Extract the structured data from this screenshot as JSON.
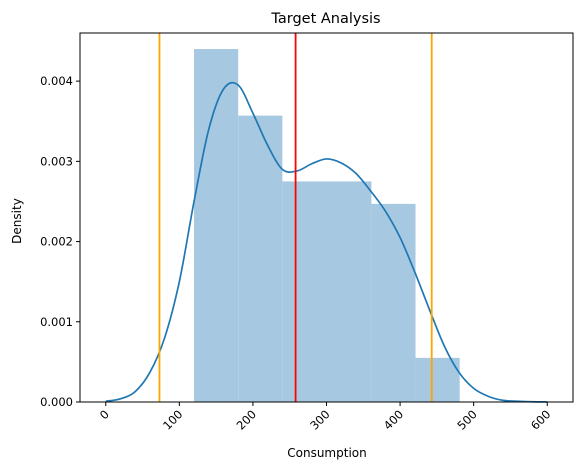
{
  "chart_data": {
    "type": "histogram+kde",
    "title": "Target Analysis",
    "xlabel": "Consumption",
    "ylabel": "Density",
    "xlim": [
      -35,
      635
    ],
    "ylim": [
      0,
      0.0046
    ],
    "xticks": [
      0,
      100,
      200,
      300,
      400,
      500,
      600
    ],
    "xtick_labels": [
      "0",
      "100",
      "200",
      "300",
      "400",
      "500",
      "600"
    ],
    "yticks": [
      0.0,
      0.001,
      0.002,
      0.003,
      0.004
    ],
    "ytick_labels": [
      "0.000",
      "0.001",
      "0.002",
      "0.003",
      "0.004"
    ],
    "histogram": {
      "color": "#a6c8e1",
      "bins": [
        {
          "x0": 120,
          "x1": 180,
          "density": 0.0044
        },
        {
          "x0": 180,
          "x1": 240,
          "density": 0.00357
        },
        {
          "x0": 240,
          "x1": 361,
          "density": 0.00275
        },
        {
          "x0": 361,
          "x1": 421,
          "density": 0.00247
        },
        {
          "x0": 421,
          "x1": 481,
          "density": 0.00055
        }
      ]
    },
    "kde": {
      "color": "#1f77b4",
      "x": [
        0,
        20,
        40,
        60,
        80,
        100,
        120,
        140,
        160,
        180,
        200,
        220,
        240,
        260,
        280,
        300,
        320,
        340,
        360,
        380,
        400,
        420,
        440,
        460,
        480,
        500,
        520,
        540,
        560,
        580,
        600
      ],
      "y": [
        1e-05,
        4e-05,
        0.00013,
        0.00037,
        0.0008,
        0.0015,
        0.0025,
        0.0034,
        0.0039,
        0.00395,
        0.0036,
        0.0032,
        0.0029,
        0.00288,
        0.00297,
        0.00303,
        0.00298,
        0.00285,
        0.00263,
        0.00238,
        0.00205,
        0.00162,
        0.00115,
        0.0007,
        0.00037,
        0.00017,
        7e-05,
        2e-05,
        1e-05,
        3e-06,
        1e-06
      ]
    },
    "vlines": [
      {
        "x": 73,
        "color": "#ffa500"
      },
      {
        "x": 258,
        "color": "#ff0000"
      },
      {
        "x": 443,
        "color": "#ffa500"
      }
    ]
  }
}
